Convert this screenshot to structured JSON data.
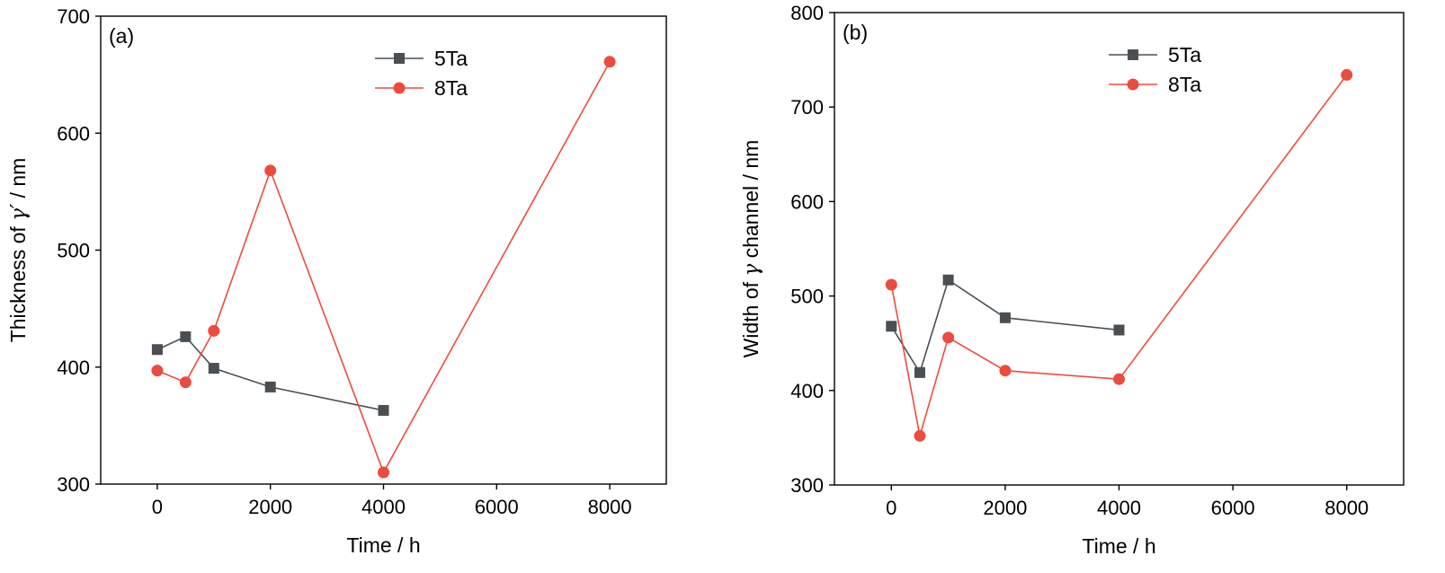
{
  "chart_data": [
    {
      "type": "line",
      "panel_label": "(a)",
      "xlabel": "Time / h",
      "ylabel_parts": [
        "Thickness of ",
        "γ′",
        " / nm"
      ],
      "xlim": [
        -1000,
        9000
      ],
      "ylim": [
        300,
        700
      ],
      "xticks": [
        0,
        2000,
        4000,
        6000,
        8000
      ],
      "yticks": [
        300,
        400,
        500,
        600,
        700
      ],
      "legend_position": "top-center",
      "series": [
        {
          "name": "5Ta",
          "color": "#4a4f54",
          "marker": "square",
          "x": [
            0,
            500,
            1000,
            2000,
            4000
          ],
          "y": [
            415,
            426,
            399,
            383,
            363
          ]
        },
        {
          "name": "8Ta",
          "color": "#ec4b3f",
          "marker": "circle",
          "x": [
            0,
            500,
            1000,
            2000,
            4000,
            8000
          ],
          "y": [
            397,
            387,
            431,
            568,
            310,
            661
          ]
        }
      ]
    },
    {
      "type": "line",
      "panel_label": "(b)",
      "xlabel": "Time / h",
      "ylabel_parts": [
        "Width of ",
        "γ",
        " channel / nm"
      ],
      "xlim": [
        -1000,
        9000
      ],
      "ylim": [
        300,
        800
      ],
      "xticks": [
        0,
        2000,
        4000,
        6000,
        8000
      ],
      "yticks": [
        300,
        400,
        500,
        600,
        700,
        800
      ],
      "legend_position": "top-center",
      "series": [
        {
          "name": "5Ta",
          "color": "#4a4f54",
          "marker": "square",
          "x": [
            0,
            500,
            1000,
            2000,
            4000
          ],
          "y": [
            468,
            419,
            517,
            477,
            464
          ]
        },
        {
          "name": "8Ta",
          "color": "#ec4b3f",
          "marker": "circle",
          "x": [
            0,
            500,
            1000,
            2000,
            4000,
            8000
          ],
          "y": [
            512,
            352,
            456,
            421,
            412,
            734
          ]
        }
      ]
    }
  ]
}
